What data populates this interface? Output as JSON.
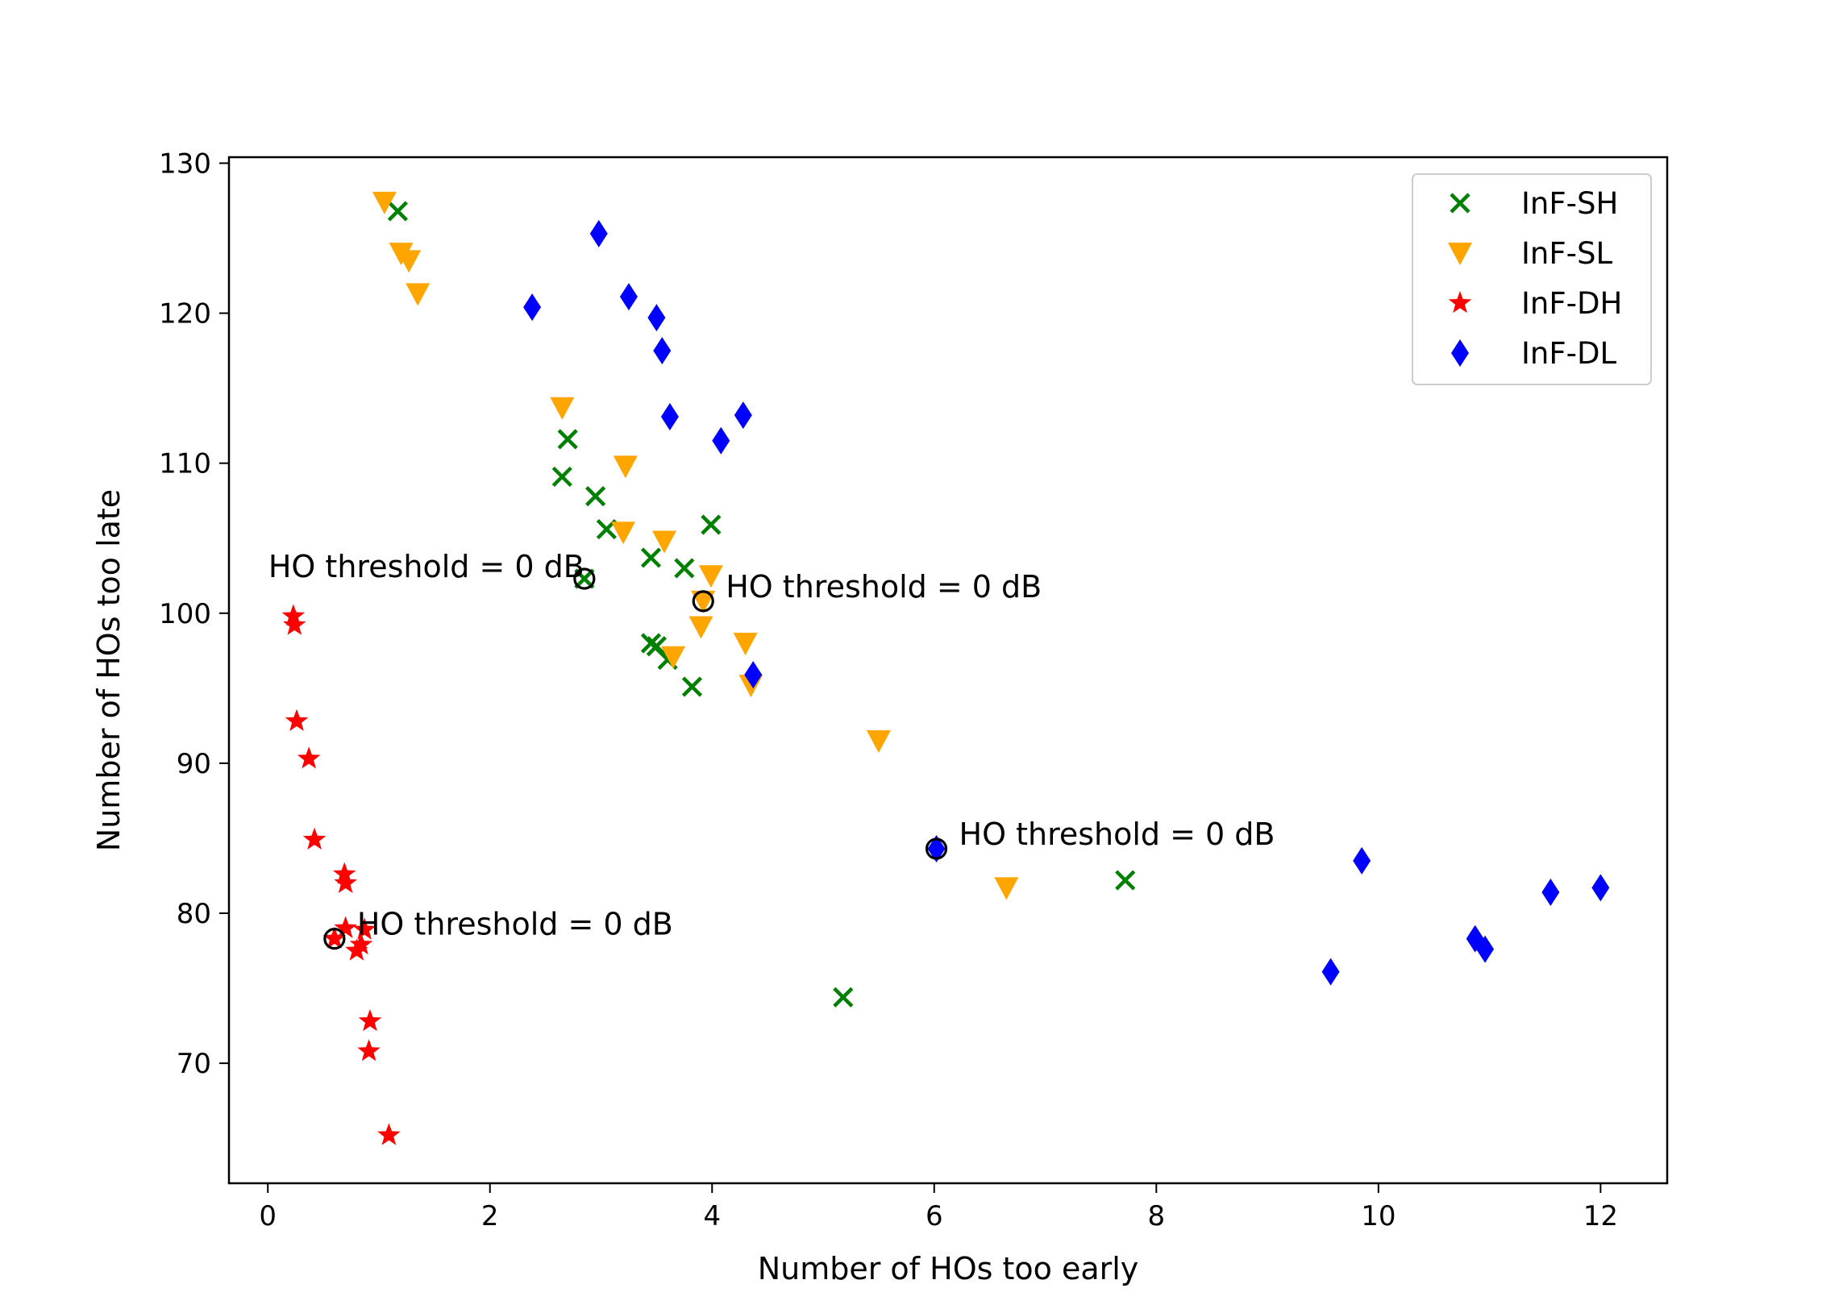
{
  "chart_data": {
    "type": "scatter",
    "title": "",
    "xlabel": "Number of HOs too early",
    "ylabel": "Number of HOs too late",
    "xlim": [
      -0.35,
      12.6
    ],
    "ylim": [
      62,
      130.4
    ],
    "xticks": [
      0,
      2,
      4,
      6,
      8,
      10,
      12
    ],
    "yticks": [
      70,
      80,
      90,
      100,
      110,
      120,
      130
    ],
    "xtick_labels": [
      "0",
      "2",
      "4",
      "6",
      "8",
      "10",
      "12"
    ],
    "ytick_labels": [
      "70",
      "80",
      "90",
      "100",
      "110",
      "120",
      "130"
    ],
    "grid": false,
    "legend_position": "top-right",
    "series": [
      {
        "name": "InF-SH",
        "marker": "x",
        "color": "#008000",
        "points": [
          {
            "x": 1.17,
            "y": 126.8
          },
          {
            "x": 2.7,
            "y": 111.6
          },
          {
            "x": 2.65,
            "y": 109.1
          },
          {
            "x": 2.95,
            "y": 107.8
          },
          {
            "x": 3.05,
            "y": 105.6
          },
          {
            "x": 3.99,
            "y": 105.9
          },
          {
            "x": 3.45,
            "y": 103.7
          },
          {
            "x": 3.75,
            "y": 103.0
          },
          {
            "x": 2.85,
            "y": 102.3
          },
          {
            "x": 3.45,
            "y": 98.0
          },
          {
            "x": 3.5,
            "y": 97.8
          },
          {
            "x": 3.6,
            "y": 96.9
          },
          {
            "x": 3.82,
            "y": 95.1
          },
          {
            "x": 7.72,
            "y": 82.2
          },
          {
            "x": 5.18,
            "y": 74.4
          }
        ]
      },
      {
        "name": "InF-SL",
        "marker": "triangle-down",
        "color": "#FFA500",
        "points": [
          {
            "x": 1.05,
            "y": 127.4
          },
          {
            "x": 1.2,
            "y": 124.0
          },
          {
            "x": 1.27,
            "y": 123.5
          },
          {
            "x": 1.35,
            "y": 121.3
          },
          {
            "x": 2.65,
            "y": 113.7
          },
          {
            "x": 3.22,
            "y": 109.8
          },
          {
            "x": 3.2,
            "y": 105.4
          },
          {
            "x": 3.57,
            "y": 104.8
          },
          {
            "x": 3.99,
            "y": 102.5
          },
          {
            "x": 3.92,
            "y": 100.8
          },
          {
            "x": 3.9,
            "y": 99.1
          },
          {
            "x": 4.3,
            "y": 98.0
          },
          {
            "x": 3.65,
            "y": 97.1
          },
          {
            "x": 4.35,
            "y": 95.2
          },
          {
            "x": 5.5,
            "y": 91.5
          },
          {
            "x": 6.65,
            "y": 81.7
          }
        ]
      },
      {
        "name": "InF-DH",
        "marker": "star",
        "color": "#FF0000",
        "points": [
          {
            "x": 0.23,
            "y": 99.8
          },
          {
            "x": 0.24,
            "y": 99.2
          },
          {
            "x": 0.26,
            "y": 92.8
          },
          {
            "x": 0.37,
            "y": 90.3
          },
          {
            "x": 0.42,
            "y": 84.9
          },
          {
            "x": 0.69,
            "y": 82.6
          },
          {
            "x": 0.7,
            "y": 82.0
          },
          {
            "x": 0.7,
            "y": 79.0
          },
          {
            "x": 0.87,
            "y": 78.9
          },
          {
            "x": 0.6,
            "y": 78.3
          },
          {
            "x": 0.84,
            "y": 77.9
          },
          {
            "x": 0.8,
            "y": 77.5
          },
          {
            "x": 0.92,
            "y": 72.8
          },
          {
            "x": 0.91,
            "y": 70.8
          },
          {
            "x": 1.09,
            "y": 65.2
          }
        ]
      },
      {
        "name": "InF-DL",
        "marker": "diamond",
        "color": "#0000FF",
        "points": [
          {
            "x": 2.98,
            "y": 125.3
          },
          {
            "x": 2.38,
            "y": 120.4
          },
          {
            "x": 3.25,
            "y": 121.1
          },
          {
            "x": 3.5,
            "y": 119.7
          },
          {
            "x": 3.55,
            "y": 117.5
          },
          {
            "x": 3.62,
            "y": 113.1
          },
          {
            "x": 4.28,
            "y": 113.2
          },
          {
            "x": 4.08,
            "y": 111.5
          },
          {
            "x": 4.37,
            "y": 95.9
          },
          {
            "x": 6.02,
            "y": 84.3
          },
          {
            "x": 9.85,
            "y": 83.5
          },
          {
            "x": 11.55,
            "y": 81.4
          },
          {
            "x": 12.0,
            "y": 81.7
          },
          {
            "x": 10.87,
            "y": 78.3
          },
          {
            "x": 10.96,
            "y": 77.6
          },
          {
            "x": 9.57,
            "y": 76.1
          }
        ]
      }
    ],
    "highlights": [
      {
        "x": 2.85,
        "y": 102.3
      },
      {
        "x": 3.92,
        "y": 100.8
      },
      {
        "x": 6.02,
        "y": 84.3
      },
      {
        "x": 0.6,
        "y": 78.3
      }
    ],
    "annotations": [
      {
        "text": "HO threshold = 0 dB",
        "x": 2.85,
        "y": 102.3,
        "align": "end"
      },
      {
        "text": "HO threshold = 0 dB",
        "x": 3.92,
        "y": 100.8,
        "align": "start"
      },
      {
        "text": "HO threshold = 0 dB",
        "x": 6.02,
        "y": 84.3,
        "align": "start"
      },
      {
        "text": "HO threshold = 0 dB",
        "x": 0.6,
        "y": 78.3,
        "align": "start"
      }
    ]
  }
}
